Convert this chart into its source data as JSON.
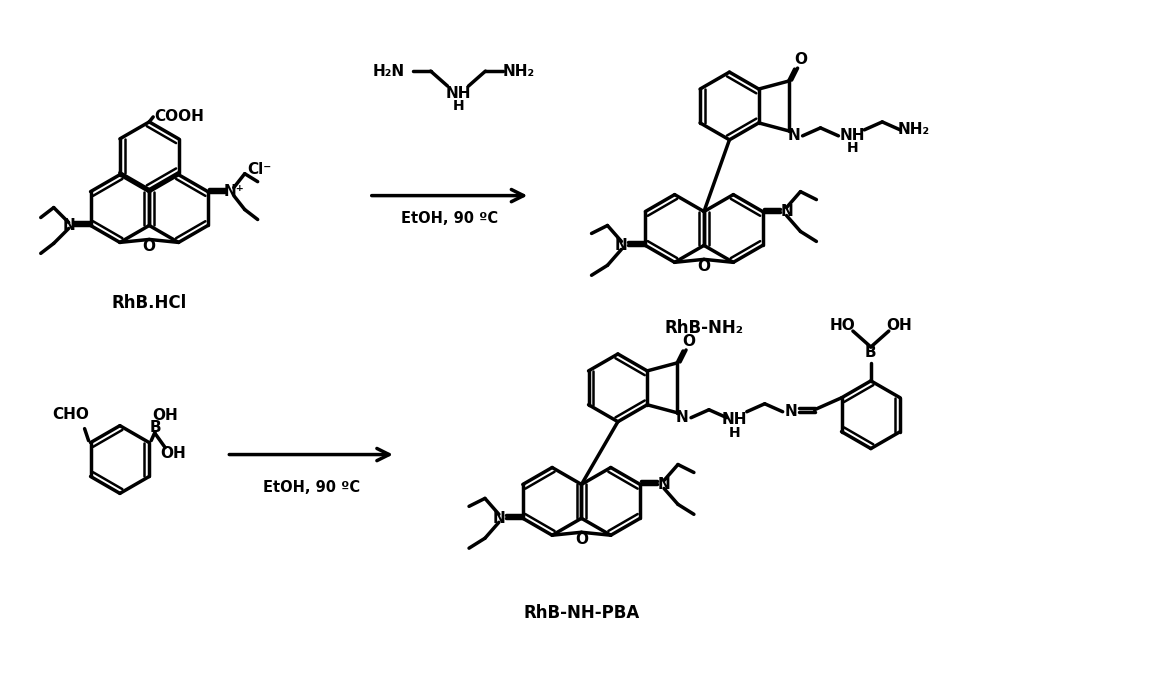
{
  "figsize": [
    11.74,
    6.89
  ],
  "dpi": 100,
  "bg": "#ffffff",
  "lw": 2.5,
  "fs": 11,
  "structures": {
    "rhbhcl_label": "RhB.HCl",
    "rhbnh2_label": "RhB-NH₂",
    "rhbnhpba_label": "RhB-NH-PBA",
    "reagent1": "H₂N",
    "reagent1b": "NH₂",
    "reagent1_nh": "NH",
    "reagent1_h": "H",
    "reagent2_cho": "CHO",
    "reagent2_oh1": "OH",
    "reagent2_b": "B",
    "reagent2_oh2": "OH",
    "arrow1_label": "EtOH, 90 ºC",
    "arrow2_label": "EtOH, 90 ºC",
    "cl_label": "Cl⁻",
    "o_label": "O",
    "n_label": "N",
    "nplus_label": "N⁺",
    "nh_label": "NH",
    "nh2_label": "NH₂",
    "cooh_label": "COOH",
    "ho_label": "HO",
    "b_label": "B",
    "ho2_label": "OH"
  }
}
